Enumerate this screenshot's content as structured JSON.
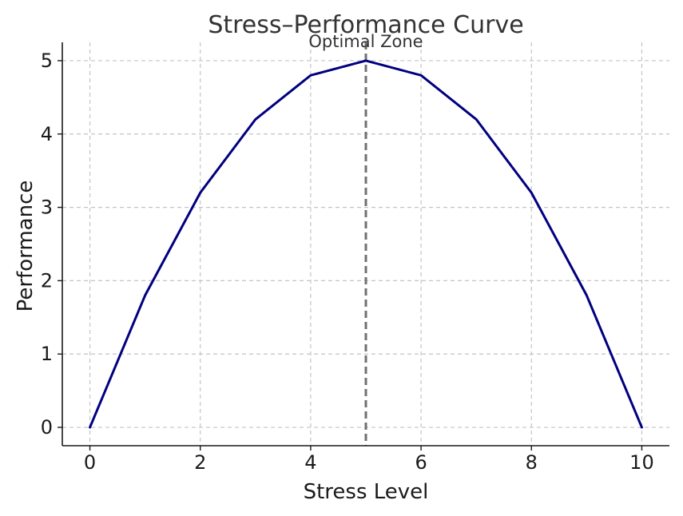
{
  "chart_data": {
    "type": "line",
    "title": "Stress–Performance Curve",
    "xlabel": "Stress Level",
    "ylabel": "Performance",
    "x": [
      0,
      1,
      2,
      3,
      4,
      5,
      6,
      7,
      8,
      9,
      10
    ],
    "series": [
      {
        "values": [
          0,
          1.8,
          3.2,
          4.2,
          4.8,
          5.0,
          4.8,
          4.2,
          3.2,
          1.8,
          0
        ],
        "color": "#000080"
      }
    ],
    "xlim": [
      -0.5,
      10.5
    ],
    "ylim": [
      -0.25,
      5.25
    ],
    "xticks": [
      0,
      2,
      4,
      6,
      8,
      10
    ],
    "yticks": [
      0,
      1,
      2,
      3,
      4,
      5
    ],
    "xtick_labels": [
      "0",
      "2",
      "4",
      "6",
      "8",
      "10"
    ],
    "ytick_labels": [
      "0",
      "1",
      "2",
      "3",
      "4",
      "5"
    ],
    "grid": true,
    "vertical_line": {
      "x": 5,
      "label": "Optimal Zone",
      "color": "#707070",
      "style": "dashed"
    }
  }
}
